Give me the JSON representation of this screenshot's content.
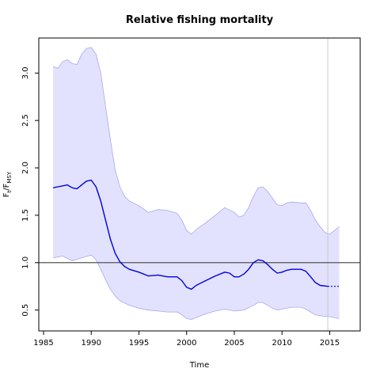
{
  "chart_data": {
    "type": "line",
    "title": "Relative fishing mortality",
    "xlabel": "Time",
    "ylabel_main": "F",
    "ylabel_sub1": "t",
    "ylabel_sep": "/F",
    "ylabel_sub2": "MSY",
    "xlim": [
      1984.5,
      2018.2
    ],
    "ylim": [
      0.28,
      3.37
    ],
    "xticks": [
      1985,
      1990,
      1995,
      2000,
      2005,
      2010,
      2015
    ],
    "yticks": [
      0.5,
      1.0,
      1.5,
      2.0,
      2.5,
      3.0
    ],
    "xtick_labels": [
      "1985",
      "1990",
      "1995",
      "2000",
      "2005",
      "2010",
      "2015"
    ],
    "ytick_labels": [
      "0.5",
      "1.0",
      "1.5",
      "2.0",
      "2.5",
      "3.0"
    ],
    "reference_line_y": 1.0,
    "vertical_line_x": 2014.8,
    "colors": {
      "estimate": "#0000dd",
      "band_fill": "#e2e2ff",
      "band_edge": "#a8a8f0",
      "reference": "#555555",
      "vertical": "#c8c8c8"
    },
    "series": [
      {
        "role": "estimate",
        "x": [
          1986,
          1986.5,
          1987,
          1987.5,
          1988,
          1988.5,
          1989,
          1989.5,
          1990,
          1990.5,
          1991,
          1991.5,
          1992,
          1992.5,
          1993,
          1993.5,
          1994,
          1995,
          1996,
          1997,
          1998,
          1999,
          1999.5,
          2000,
          2000.5,
          2001,
          2002,
          2003,
          2004,
          2004.5,
          2005,
          2005.5,
          2006,
          2006.5,
          2007,
          2007.5,
          2008,
          2008.5,
          2009,
          2009.5,
          2010,
          2010.5,
          2011,
          2012,
          2012.5,
          2013,
          2013.5,
          2014,
          2014.8
        ],
        "y": [
          1.79,
          1.8,
          1.81,
          1.82,
          1.79,
          1.78,
          1.82,
          1.86,
          1.87,
          1.8,
          1.65,
          1.45,
          1.25,
          1.1,
          1.01,
          0.96,
          0.93,
          0.9,
          0.86,
          0.87,
          0.85,
          0.85,
          0.81,
          0.74,
          0.72,
          0.76,
          0.81,
          0.86,
          0.9,
          0.89,
          0.85,
          0.85,
          0.88,
          0.93,
          1.0,
          1.03,
          1.02,
          0.98,
          0.93,
          0.89,
          0.9,
          0.92,
          0.93,
          0.93,
          0.91,
          0.85,
          0.79,
          0.76,
          0.75
        ]
      },
      {
        "role": "forecast",
        "x": [
          2014.8,
          2016
        ],
        "y": [
          0.75,
          0.75
        ]
      },
      {
        "role": "upper_ci",
        "x": [
          1986,
          1986.5,
          1987,
          1987.5,
          1988,
          1988.5,
          1989,
          1989.5,
          1990,
          1990.5,
          1991,
          1991.5,
          1992,
          1992.5,
          1993,
          1993.5,
          1994,
          1995,
          1996,
          1997,
          1998,
          1999,
          1999.5,
          2000,
          2000.5,
          2001,
          2002,
          2003,
          2004,
          2005,
          2005.5,
          2006,
          2006.5,
          2007,
          2007.5,
          2008,
          2008.5,
          2009,
          2009.5,
          2010,
          2010.5,
          2011,
          2012,
          2012.5,
          2013,
          2013.5,
          2014,
          2014.5,
          2015,
          2016
        ],
        "y": [
          3.07,
          3.05,
          3.12,
          3.14,
          3.1,
          3.09,
          3.2,
          3.26,
          3.27,
          3.2,
          3.0,
          2.65,
          2.3,
          1.98,
          1.8,
          1.7,
          1.65,
          1.6,
          1.53,
          1.56,
          1.55,
          1.52,
          1.45,
          1.34,
          1.3,
          1.35,
          1.42,
          1.5,
          1.58,
          1.53,
          1.48,
          1.5,
          1.58,
          1.7,
          1.79,
          1.8,
          1.75,
          1.68,
          1.61,
          1.6,
          1.63,
          1.64,
          1.63,
          1.63,
          1.55,
          1.45,
          1.38,
          1.32,
          1.3,
          1.38
        ]
      },
      {
        "role": "lower_ci",
        "x": [
          1986,
          1987,
          1988,
          1989,
          1990,
          1990.5,
          1991,
          1991.5,
          1992,
          1992.5,
          1993,
          1994,
          1995,
          1996,
          1997,
          1998,
          1999,
          1999.5,
          2000,
          2000.5,
          2001,
          2002,
          2003,
          2004,
          2005,
          2006,
          2007,
          2007.5,
          2008,
          2008.5,
          2009,
          2009.5,
          2010,
          2011,
          2012,
          2012.5,
          2013,
          2013.5,
          2014,
          2014.8,
          2015,
          2016
        ],
        "y": [
          1.05,
          1.07,
          1.02,
          1.05,
          1.08,
          1.03,
          0.93,
          0.82,
          0.72,
          0.65,
          0.6,
          0.55,
          0.52,
          0.5,
          0.49,
          0.48,
          0.48,
          0.45,
          0.41,
          0.4,
          0.42,
          0.46,
          0.49,
          0.51,
          0.49,
          0.5,
          0.55,
          0.58,
          0.58,
          0.55,
          0.52,
          0.5,
          0.51,
          0.53,
          0.53,
          0.51,
          0.48,
          0.45,
          0.44,
          0.43,
          0.43,
          0.41
        ]
      }
    ]
  }
}
